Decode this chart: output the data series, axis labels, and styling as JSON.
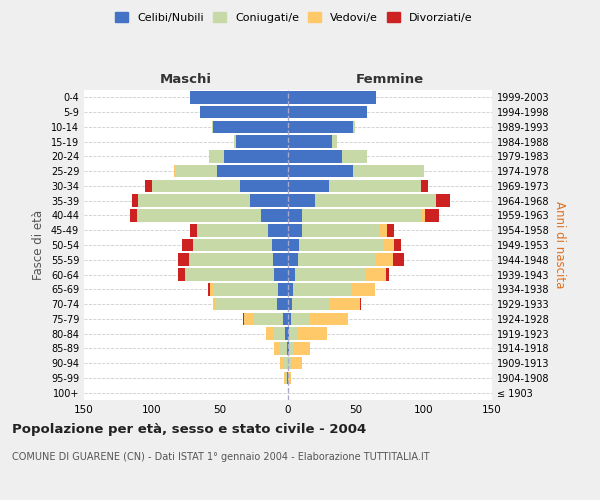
{
  "age_groups": [
    "100+",
    "95-99",
    "90-94",
    "85-89",
    "80-84",
    "75-79",
    "70-74",
    "65-69",
    "60-64",
    "55-59",
    "50-54",
    "45-49",
    "40-44",
    "35-39",
    "30-34",
    "25-29",
    "20-24",
    "15-19",
    "10-14",
    "5-9",
    "0-4"
  ],
  "birth_years": [
    "≤ 1903",
    "1904-1908",
    "1909-1913",
    "1914-1918",
    "1919-1923",
    "1924-1928",
    "1929-1933",
    "1934-1938",
    "1939-1943",
    "1944-1948",
    "1949-1953",
    "1954-1958",
    "1959-1963",
    "1964-1968",
    "1969-1973",
    "1974-1978",
    "1979-1983",
    "1984-1988",
    "1989-1993",
    "1994-1998",
    "1999-2003"
  ],
  "maschi": {
    "celibi": [
      0,
      1,
      0,
      1,
      2,
      4,
      8,
      7,
      10,
      11,
      12,
      15,
      20,
      28,
      35,
      52,
      47,
      38,
      55,
      65,
      72
    ],
    "coniugati": [
      0,
      1,
      3,
      5,
      8,
      22,
      45,
      48,
      65,
      62,
      58,
      52,
      90,
      82,
      65,
      30,
      10,
      2,
      1,
      0,
      0
    ],
    "vedovi": [
      0,
      1,
      3,
      4,
      6,
      6,
      2,
      2,
      1,
      0,
      0,
      0,
      1,
      0,
      0,
      2,
      1,
      0,
      0,
      0,
      0
    ],
    "divorziati": [
      0,
      0,
      0,
      0,
      0,
      1,
      0,
      2,
      5,
      8,
      8,
      5,
      5,
      5,
      5,
      0,
      0,
      0,
      0,
      0,
      0
    ]
  },
  "femmine": {
    "nubili": [
      0,
      0,
      0,
      1,
      1,
      2,
      3,
      4,
      5,
      7,
      8,
      10,
      10,
      20,
      30,
      48,
      40,
      32,
      48,
      58,
      65
    ],
    "coniugate": [
      0,
      0,
      2,
      3,
      6,
      14,
      28,
      42,
      52,
      58,
      62,
      58,
      88,
      88,
      68,
      52,
      18,
      4,
      1,
      0,
      0
    ],
    "vedove": [
      0,
      2,
      8,
      12,
      22,
      28,
      22,
      18,
      15,
      12,
      8,
      5,
      3,
      1,
      0,
      0,
      0,
      0,
      0,
      0,
      0
    ],
    "divorziate": [
      0,
      0,
      0,
      0,
      0,
      0,
      1,
      0,
      2,
      8,
      5,
      5,
      10,
      10,
      5,
      0,
      0,
      0,
      0,
      0,
      0
    ]
  },
  "colors": {
    "celibi": "#4472c4",
    "coniugati": "#c8d9a8",
    "vedovi": "#ffc96a",
    "divorziati": "#cc2222"
  },
  "xlim": 150,
  "title": "Popolazione per età, sesso e stato civile - 2004",
  "subtitle": "COMUNE DI GUARENE (CN) - Dati ISTAT 1° gennaio 2004 - Elaborazione TUTTITALIA.IT",
  "ylabel_left": "Fasce di età",
  "ylabel_right": "Anni di nascita",
  "xlabel_maschi": "Maschi",
  "xlabel_femmine": "Femmine",
  "bg_color": "#efefef",
  "plot_bg_color": "#ffffff"
}
